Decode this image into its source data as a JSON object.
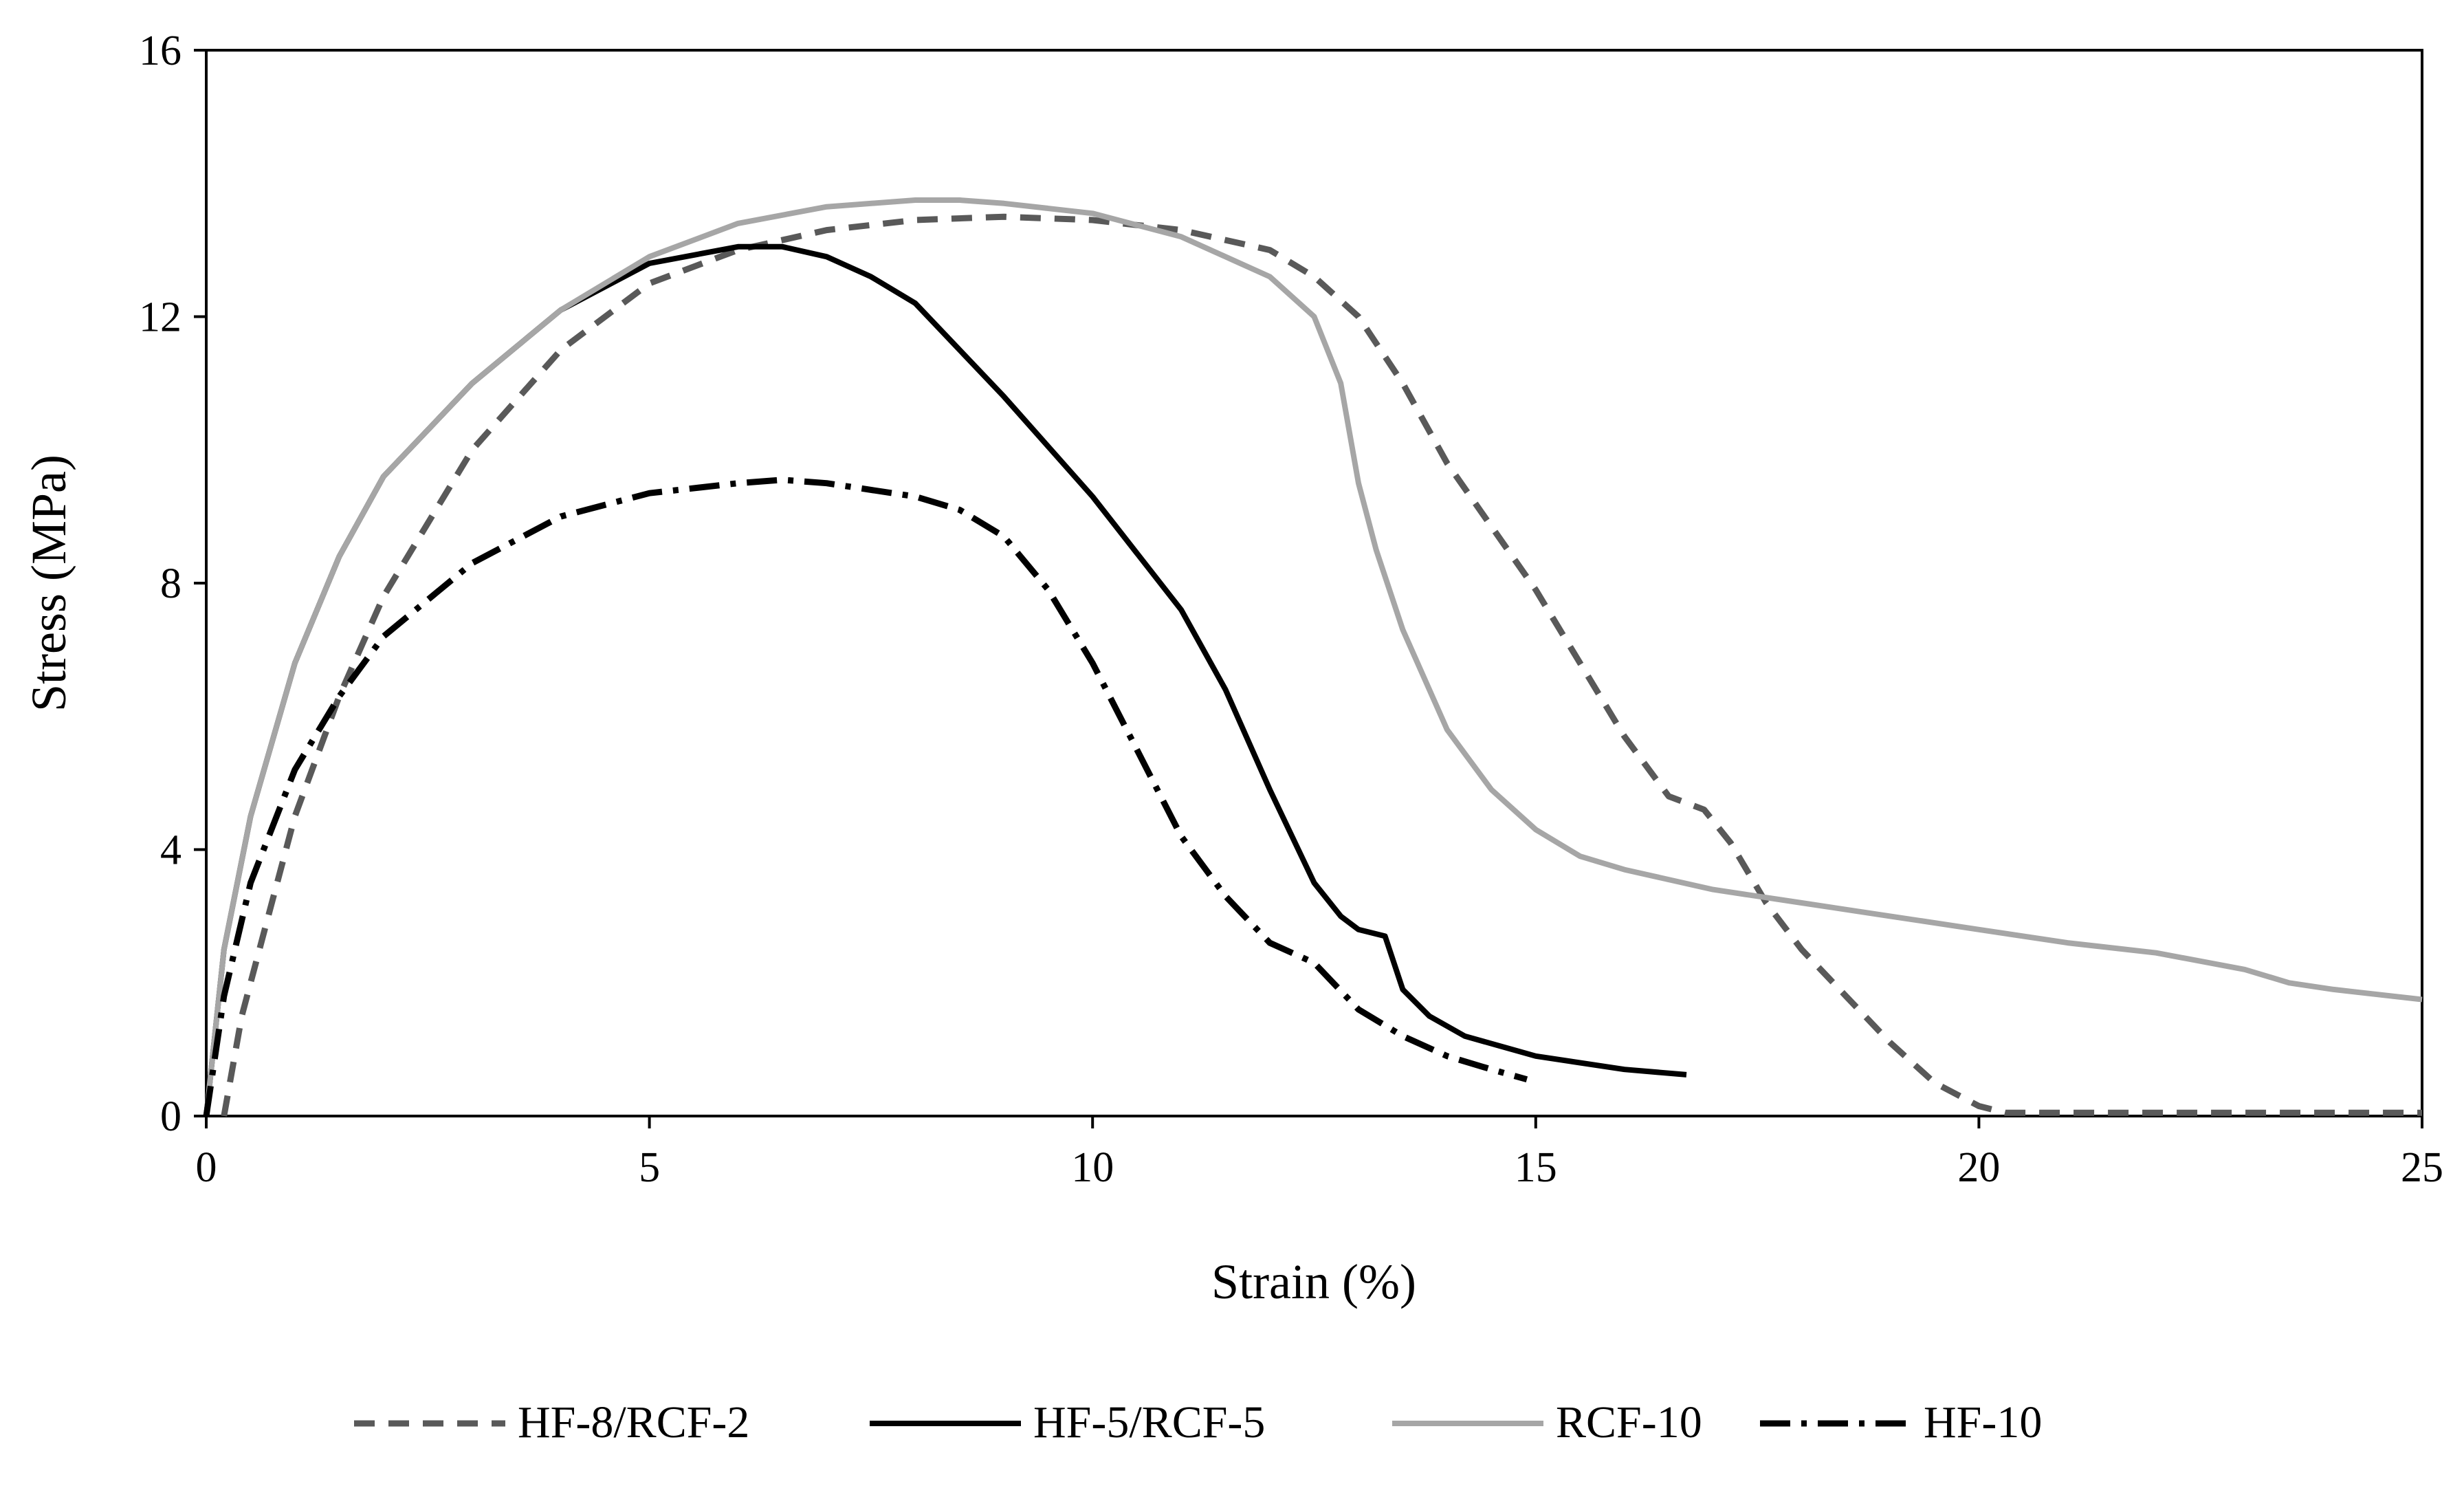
{
  "chart_data": {
    "type": "line",
    "title": "",
    "xlabel": "Strain (%)",
    "ylabel": "Stress (MPa)",
    "xlim": [
      0,
      25
    ],
    "ylim": [
      0,
      16
    ],
    "xticks": [
      0,
      5,
      10,
      15,
      20,
      25
    ],
    "yticks": [
      0,
      4,
      8,
      12,
      16
    ],
    "grid": false,
    "legend_position": "bottom",
    "series": [
      {
        "name": "HF-8/RCF-2",
        "style": "dashed",
        "color": "#595959",
        "x": [
          0.2,
          0.4,
          0.7,
          1.0,
          1.5,
          2.0,
          3.0,
          4.0,
          5.0,
          6.0,
          7.0,
          8.0,
          9.0,
          10.0,
          11.0,
          12.0,
          12.5,
          13.0,
          13.5,
          14.0,
          15.0,
          15.5,
          16.0,
          16.5,
          16.9,
          17.2,
          17.6,
          18.0,
          18.5,
          19.0,
          19.5,
          20.0,
          20.3,
          21.0,
          22.0,
          23.0,
          24.0,
          25.0
        ],
        "y": [
          0.0,
          1.5,
          3.0,
          4.5,
          6.3,
          7.8,
          10.0,
          11.5,
          12.5,
          13.0,
          13.3,
          13.45,
          13.5,
          13.45,
          13.3,
          13.0,
          12.6,
          12.0,
          11.0,
          9.8,
          7.9,
          6.8,
          5.7,
          4.8,
          4.6,
          4.1,
          3.2,
          2.5,
          1.8,
          1.1,
          0.5,
          0.15,
          0.05,
          0.05,
          0.05,
          0.05,
          0.05,
          0.05
        ]
      },
      {
        "name": "HF-5/RCF-5",
        "style": "solid",
        "color": "#000000",
        "x": [
          0.0,
          0.2,
          0.5,
          1.0,
          1.5,
          2.0,
          3.0,
          4.0,
          5.0,
          6.0,
          6.5,
          7.0,
          7.5,
          8.0,
          9.0,
          10.0,
          11.0,
          11.5,
          12.0,
          12.5,
          12.8,
          13.0,
          13.3,
          13.5,
          13.8,
          14.2,
          15.0,
          16.0,
          16.7
        ],
        "y": [
          0.0,
          2.5,
          4.5,
          6.8,
          8.4,
          9.6,
          11.0,
          12.1,
          12.8,
          13.05,
          13.05,
          12.9,
          12.6,
          12.2,
          10.8,
          9.3,
          7.6,
          6.4,
          4.9,
          3.5,
          3.0,
          2.8,
          2.7,
          1.9,
          1.5,
          1.2,
          0.9,
          0.7,
          0.62
        ]
      },
      {
        "name": "RCF-10",
        "style": "solid",
        "color": "#a6a6a6",
        "x": [
          0.0,
          0.2,
          0.5,
          1.0,
          1.5,
          2.0,
          3.0,
          4.0,
          5.0,
          6.0,
          7.0,
          8.0,
          8.5,
          9.0,
          10.0,
          11.0,
          12.0,
          12.5,
          12.8,
          13.0,
          13.2,
          13.5,
          14.0,
          14.5,
          15.0,
          15.5,
          16.0,
          17.0,
          18.0,
          19.0,
          20.0,
          21.0,
          22.0,
          23.0,
          23.5,
          24.0,
          25.0
        ],
        "y": [
          0.0,
          2.5,
          4.5,
          6.8,
          8.4,
          9.6,
          11.0,
          12.1,
          12.9,
          13.4,
          13.65,
          13.75,
          13.75,
          13.7,
          13.55,
          13.2,
          12.6,
          12.0,
          11.0,
          9.5,
          8.5,
          7.3,
          5.8,
          4.9,
          4.3,
          3.9,
          3.7,
          3.4,
          3.2,
          3.0,
          2.8,
          2.6,
          2.45,
          2.2,
          2.0,
          1.9,
          1.75
        ]
      },
      {
        "name": "HF-10",
        "style": "dash-dot",
        "color": "#000000",
        "x": [
          0.0,
          0.2,
          0.5,
          1.0,
          1.5,
          2.0,
          3.0,
          4.0,
          5.0,
          6.0,
          6.5,
          7.0,
          8.0,
          8.5,
          9.0,
          9.5,
          10.0,
          10.5,
          11.0,
          11.5,
          12.0,
          12.5,
          13.0,
          13.5,
          14.0,
          14.5,
          14.9
        ],
        "y": [
          0.0,
          1.8,
          3.5,
          5.2,
          6.3,
          7.2,
          8.3,
          9.0,
          9.35,
          9.5,
          9.55,
          9.5,
          9.3,
          9.1,
          8.7,
          7.9,
          6.8,
          5.5,
          4.2,
          3.3,
          2.6,
          2.3,
          1.6,
          1.2,
          0.9,
          0.7,
          0.55
        ]
      }
    ]
  }
}
